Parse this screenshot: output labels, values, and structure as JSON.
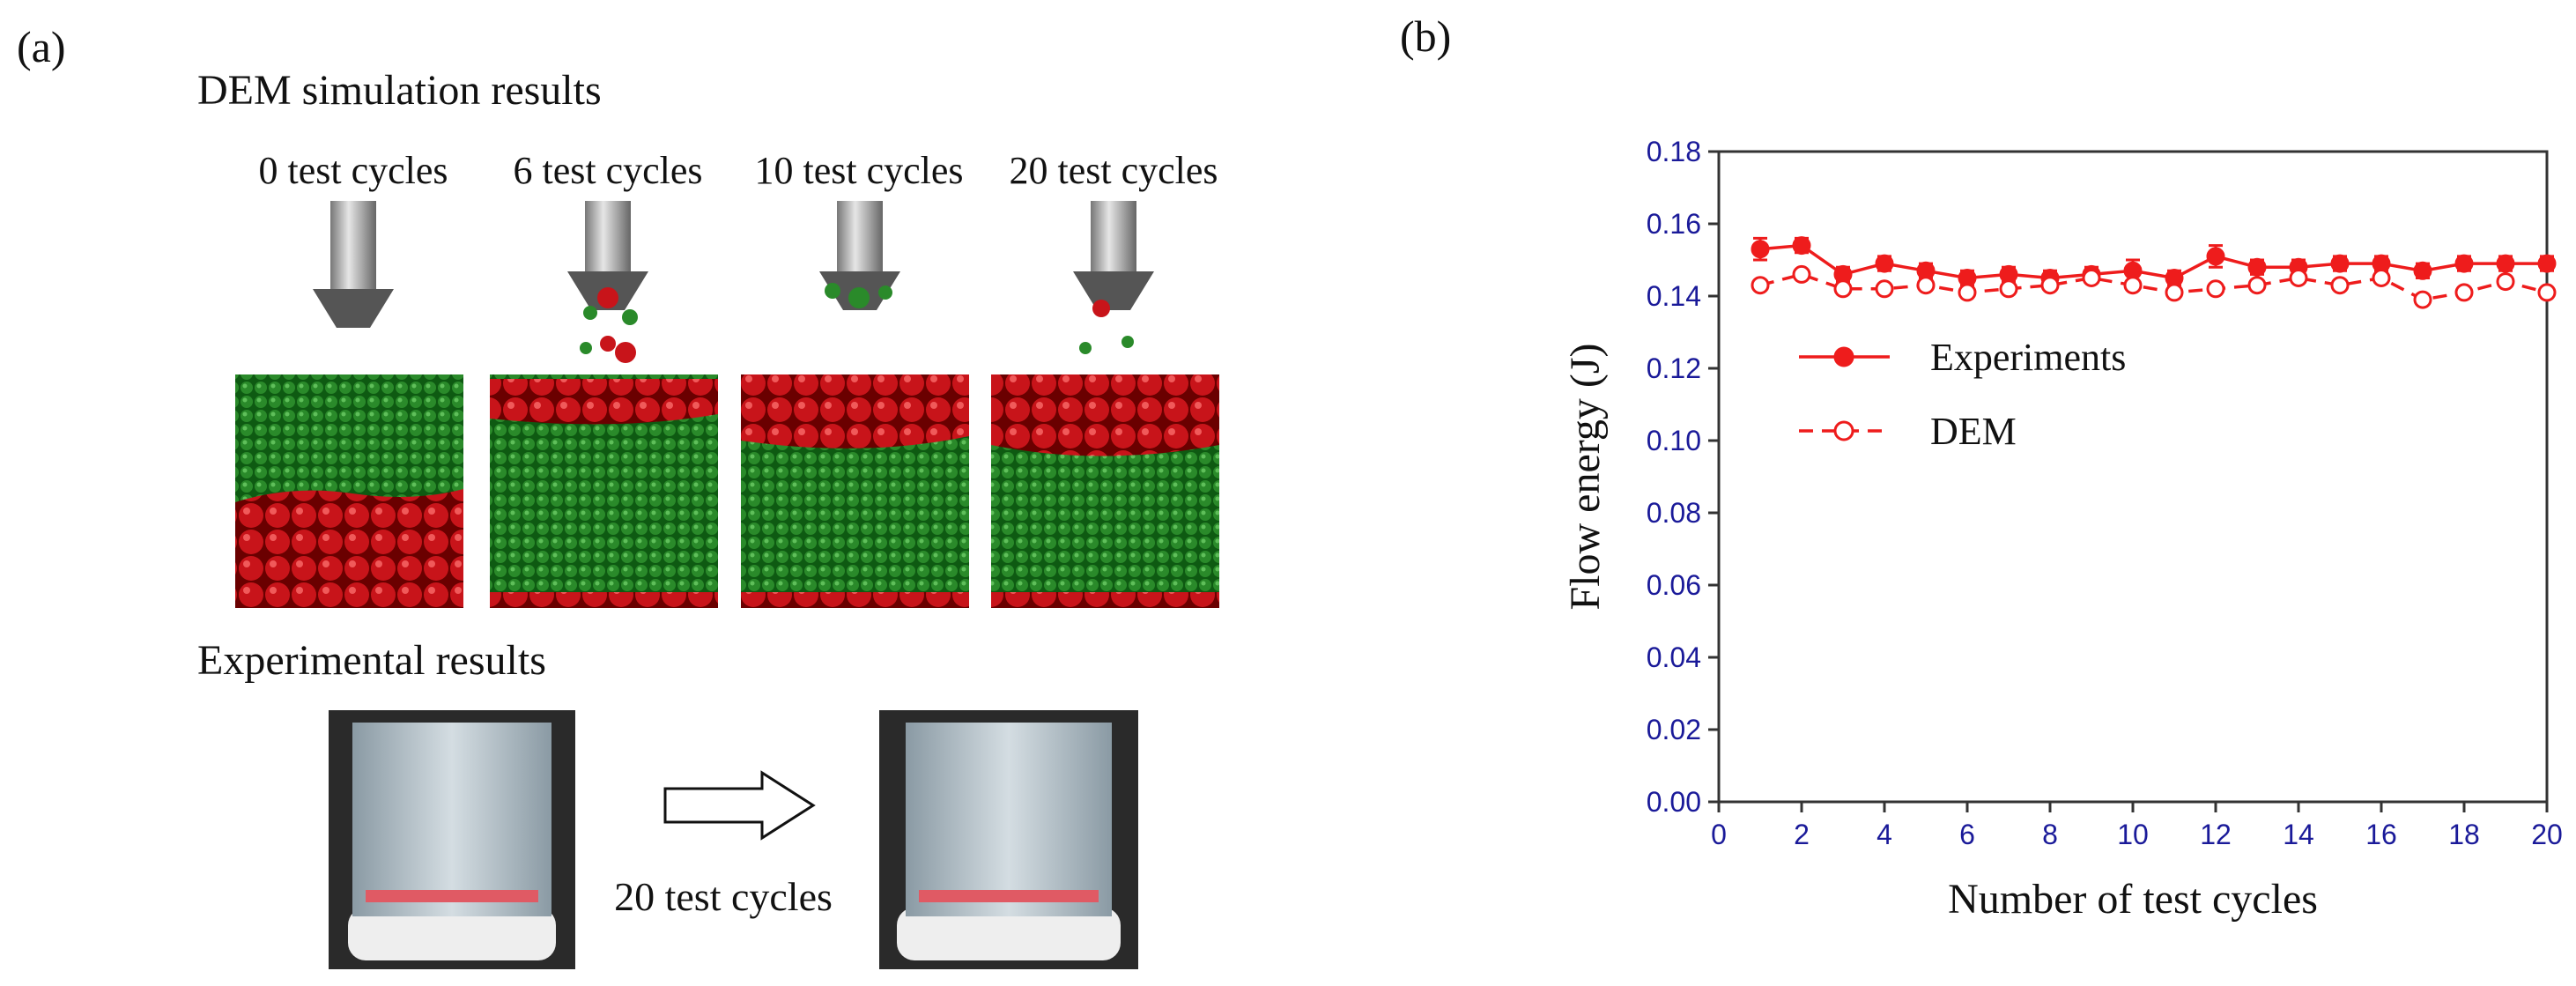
{
  "panel_labels": [
    "(a)",
    "(b)"
  ],
  "panel_a": {
    "simulation_title": "DEM simulation results",
    "cycle_labels": [
      "0 test cycles",
      "6 test cycles",
      "10 test cycles",
      "20 test cycles"
    ],
    "experimental_title": "Experimental results",
    "arrow_label": "20 test cycles"
  },
  "chart_data": {
    "type": "line",
    "xlabel": "Number of test cycles",
    "ylabel": "Flow energy (J)",
    "x": [
      1,
      2,
      3,
      4,
      5,
      6,
      7,
      8,
      9,
      10,
      11,
      12,
      13,
      14,
      15,
      16,
      17,
      18,
      19,
      20
    ],
    "series": [
      {
        "name": "Experiments",
        "color": "#ee1c1c",
        "marker": "filled",
        "dash": false,
        "values": [
          0.153,
          0.154,
          0.146,
          0.149,
          0.147,
          0.145,
          0.146,
          0.145,
          0.146,
          0.147,
          0.145,
          0.151,
          0.148,
          0.148,
          0.149,
          0.149,
          0.147,
          0.149,
          0.149,
          0.149
        ],
        "errors": [
          0.003,
          0.002,
          0.002,
          0.002,
          0.002,
          0.002,
          0.002,
          0.002,
          0.002,
          0.003,
          0.002,
          0.003,
          0.002,
          0.002,
          0.002,
          0.002,
          0.002,
          0.002,
          0.002,
          0.002
        ]
      },
      {
        "name": "DEM",
        "color": "#ee1c1c",
        "marker": "open",
        "dash": true,
        "values": [
          0.143,
          0.146,
          0.142,
          0.142,
          0.143,
          0.141,
          0.142,
          0.143,
          0.145,
          0.143,
          0.141,
          0.142,
          0.143,
          0.145,
          0.143,
          0.145,
          0.139,
          0.141,
          0.144,
          0.141
        ]
      }
    ],
    "xlim": [
      0,
      20
    ],
    "ylim": [
      0,
      0.18
    ],
    "xticks": [
      0,
      2,
      4,
      6,
      8,
      10,
      12,
      14,
      16,
      18,
      20
    ],
    "yticks": [
      {
        "value": 0,
        "label": "0.00"
      },
      0.02,
      0.04,
      0.06,
      0.08,
      {
        "value": 0.1,
        "label": "0.10"
      },
      0.12,
      0.14,
      0.16,
      0.18
    ]
  }
}
